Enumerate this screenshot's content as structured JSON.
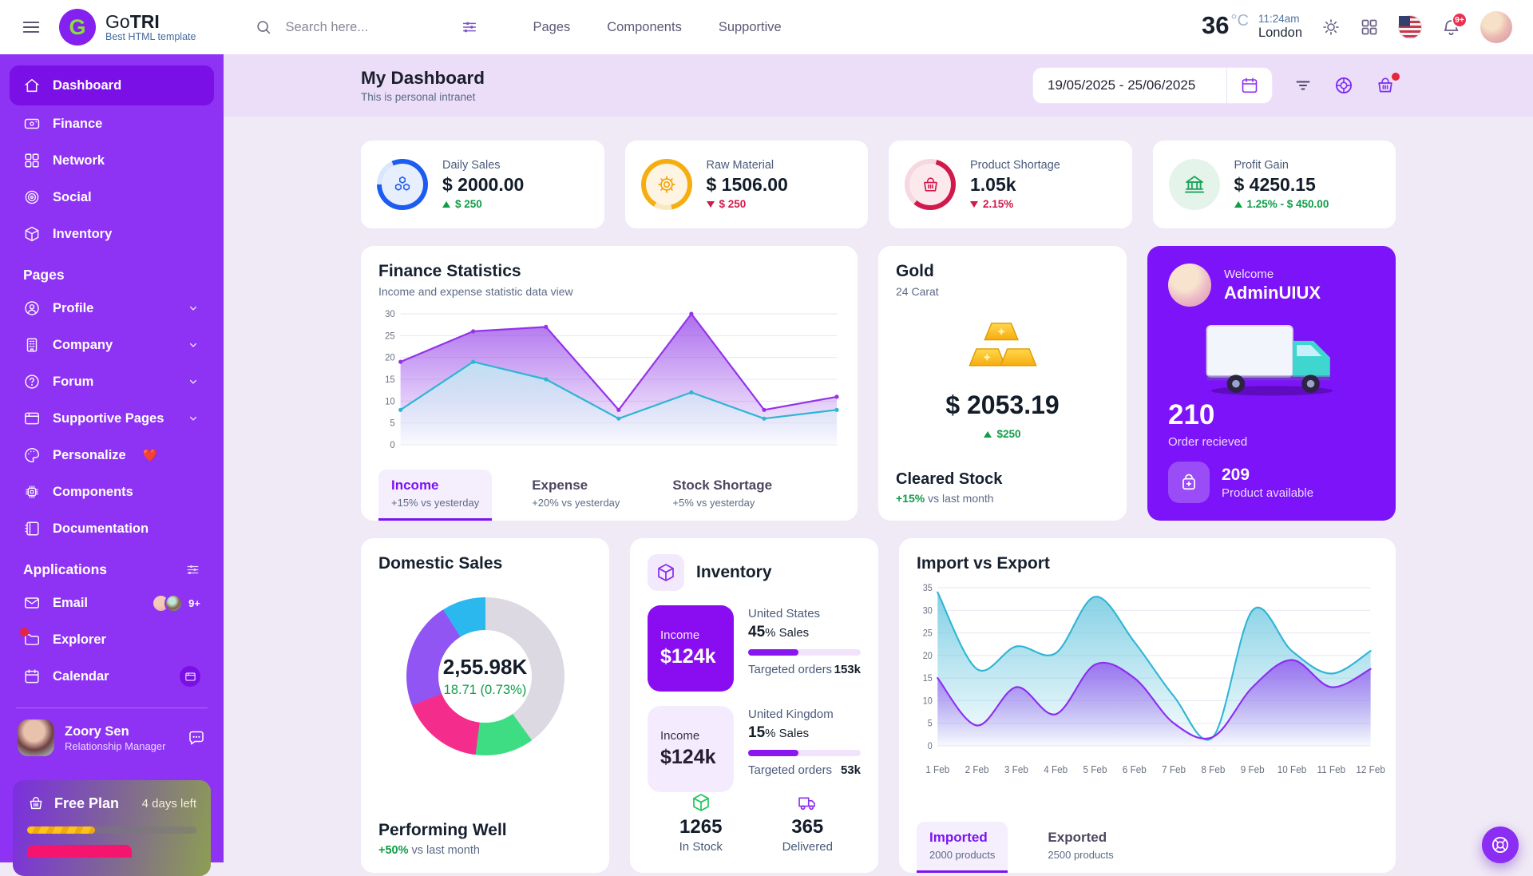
{
  "navbar": {
    "brand": {
      "first": "Go",
      "second": "TRI",
      "tagline": "Best HTML template",
      "logo_letter": "G"
    },
    "search_placeholder": "Search here...",
    "links": [
      {
        "label": "Pages"
      },
      {
        "label": "Components"
      },
      {
        "label": "Supportive"
      }
    ],
    "weather": {
      "temp": "36",
      "unit": "°C",
      "time": "11:24am",
      "city": "London"
    },
    "bell_badge": "9+"
  },
  "sidebar": {
    "main_items": [
      {
        "label": "Dashboard"
      },
      {
        "label": "Finance"
      },
      {
        "label": "Network"
      },
      {
        "label": "Social"
      },
      {
        "label": "Inventory"
      }
    ],
    "pages_label": "Pages",
    "pages_items": [
      {
        "label": "Profile"
      },
      {
        "label": "Company"
      },
      {
        "label": "Forum"
      },
      {
        "label": "Supportive Pages"
      },
      {
        "label": "Personalize"
      },
      {
        "label": "Components"
      },
      {
        "label": "Documentation"
      }
    ],
    "personalize_heart": "❤️",
    "applications_label": "Applications",
    "email_label": "Email",
    "email_badge": "9+",
    "explorer_label": "Explorer",
    "calendar_label": "Calendar",
    "user": {
      "name": "Zoory Sen",
      "role": "Relationship Manager"
    },
    "plan": {
      "name": "Free Plan",
      "days_left": "4 days left",
      "progress_pct": 40
    }
  },
  "page_header": {
    "title": "My Dashboard",
    "subtitle": "This is personal intranet",
    "date_range": "19/05/2025 - 25/06/2025"
  },
  "stats": [
    {
      "label": "Daily Sales",
      "value": "$ 2000.00",
      "delta": "$ 250",
      "direction": "up"
    },
    {
      "label": "Raw Material",
      "value": "$ 1506.00",
      "delta": "$ 250",
      "direction": "down"
    },
    {
      "label": "Product Shortage",
      "value": "1.05k",
      "delta": "2.15%",
      "direction": "down"
    },
    {
      "label": "Profit Gain",
      "value": "$ 4250.15",
      "delta": "1.25% - $ 450.00",
      "direction": "up"
    }
  ],
  "finance": {
    "title": "Finance Statistics",
    "subtitle": "Income and expense statistic data view",
    "tabs": [
      {
        "label": "Income",
        "sub": "+15% vs yesterday"
      },
      {
        "label": "Expense",
        "sub": "+20% vs yesterday"
      },
      {
        "label": "Stock Shortage",
        "sub": "+5% vs yesterday"
      }
    ]
  },
  "gold": {
    "title": "Gold",
    "subtitle": "24 Carat",
    "price": "$ 2053.19",
    "delta": "$250",
    "footer_title": "Cleared Stock",
    "footer_delta": "+15%",
    "footer_rest": " vs last month"
  },
  "welcome": {
    "greeting": "Welcome",
    "name": "AdminUIUX",
    "orders": "210",
    "orders_label": "Order recieved",
    "available": "209",
    "available_label": "Product available"
  },
  "domestic": {
    "title": "Domestic Sales",
    "center_value": "2,55.98K",
    "center_delta": "18.71 (0.73%)",
    "footer_title": "Performing Well",
    "footer_delta": "+50%",
    "footer_rest": " vs last month"
  },
  "inventory": {
    "title": "Inventory",
    "rows": [
      {
        "income_label": "Income",
        "income_value": "$124k",
        "country": "United States",
        "sales_value": "45",
        "sales_suffix": "% Sales",
        "orders_label": "Targeted orders",
        "orders_value": "153k",
        "progress_pct": 45
      },
      {
        "income_label": "Income",
        "income_value": "$124k",
        "country": "United Kingdom",
        "sales_value": "15",
        "sales_suffix": "% Sales",
        "orders_label": "Targeted orders",
        "orders_value": "53k",
        "progress_pct": 45
      }
    ],
    "in_stock": {
      "value": "1265",
      "label": "In Stock"
    },
    "delivered": {
      "value": "365",
      "label": "Delivered"
    }
  },
  "import_export": {
    "title": "Import vs Export",
    "tabs": [
      {
        "label": "Imported",
        "sub": "2000 products"
      },
      {
        "label": "Exported",
        "sub": "2500 products"
      }
    ]
  },
  "colors": {
    "sidebar": "#8e32f4",
    "accent": "#7c12f4",
    "positive": "#0f9d46",
    "negative": "#d1194b",
    "teal_series": "#2fb5d4",
    "purple_series": "#8b2df2",
    "welcome_bg": "#7d13f8"
  },
  "chart_data": [
    {
      "id": "finance-chart",
      "type": "area",
      "smooth": false,
      "title": "Finance Statistics",
      "xlabel": "",
      "ylabel": "",
      "ylim": [
        0,
        30
      ],
      "yticks": [
        0,
        5,
        10,
        15,
        20,
        25,
        30
      ],
      "grid": true,
      "legend": "none",
      "series": [
        {
          "name": "income-upper",
          "values": [
            19,
            26,
            27,
            8,
            30,
            8,
            11
          ],
          "stroke": "#9333ea",
          "fill_from": "rgba(153,74,233,0.80)",
          "fill_to": "rgba(153,74,233,0.02)"
        },
        {
          "name": "income-lower",
          "values": [
            8,
            19,
            15,
            6,
            12,
            6,
            8
          ],
          "stroke": "#2fb5d4",
          "fill_from": "rgba(190,228,240,0.95)",
          "fill_to": "rgba(235,248,252,0.25)"
        }
      ]
    },
    {
      "id": "import-chart",
      "type": "area",
      "smooth": true,
      "title": "Import vs Export",
      "xlabel": "",
      "ylabel": "",
      "ylim": [
        0,
        35
      ],
      "yticks": [
        0,
        5,
        10,
        15,
        20,
        25,
        30,
        35
      ],
      "grid": true,
      "legend": "none",
      "x": [
        "1 Feb",
        "2 Feb",
        "3 Feb",
        "4 Feb",
        "5 Feb",
        "6 Feb",
        "7 Feb",
        "8 Feb",
        "9 Feb",
        "10 Feb",
        "11 Feb",
        "12 Feb"
      ],
      "series": [
        {
          "name": "Imported",
          "values": [
            34,
            17,
            22,
            20.5,
            33,
            23,
            11,
            2,
            30,
            21,
            16,
            21
          ],
          "stroke": "#2fb5d4",
          "fill_from": "rgba(110,200,224,0.85)",
          "fill_to": "rgba(110,200,224,0.04)"
        },
        {
          "name": "Exported",
          "values": [
            15,
            4.5,
            13,
            7,
            18,
            15,
            5,
            2,
            13,
            19,
            13,
            17
          ],
          "stroke": "#8b2df2",
          "fill_from": "rgba(150,92,240,0.85)",
          "fill_to": "rgba(150,92,240,0.02)"
        }
      ]
    },
    {
      "id": "domestic-donut",
      "type": "pie",
      "title": "Domestic Sales",
      "center_value": "2,55.98K",
      "center_delta": "18.71 (0.73%)",
      "segments": [
        {
          "label": "segment-gray",
          "value": 40,
          "color": "#dcd9e2"
        },
        {
          "label": "segment-green",
          "value": 12,
          "color": "#3fdd83"
        },
        {
          "label": "segment-pink",
          "value": 17,
          "color": "#f42d8d"
        },
        {
          "label": "segment-purple",
          "value": 22,
          "color": "#9055f2"
        },
        {
          "label": "segment-blue",
          "value": 9,
          "color": "#2bb8ef"
        }
      ]
    }
  ]
}
